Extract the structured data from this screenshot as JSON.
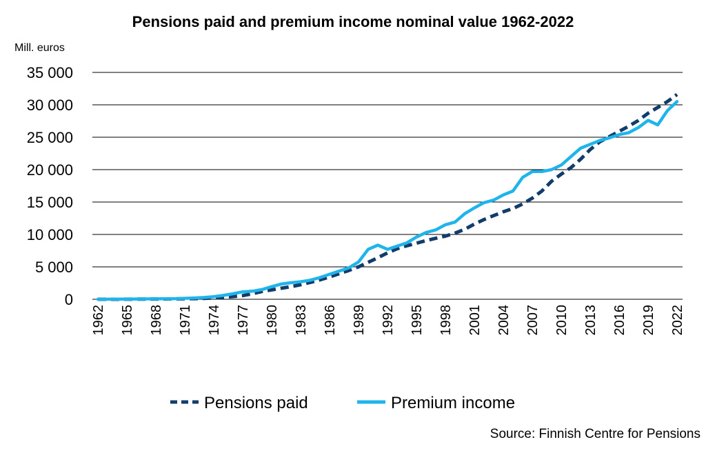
{
  "chart_data": {
    "type": "line",
    "title": "Pensions paid and premium income nominal value 1962-2022",
    "ylabel": "Mill. euros",
    "source": "Source: Finnish Centre for Pensions",
    "ylim": [
      0,
      35000
    ],
    "yticks": [
      "0",
      "5 000",
      "10 000",
      "15 000",
      "20 000",
      "25 000",
      "30 000",
      "35 000"
    ],
    "ytick_values": [
      0,
      5000,
      10000,
      15000,
      20000,
      25000,
      30000,
      35000
    ],
    "x": [
      1962,
      1963,
      1964,
      1965,
      1966,
      1967,
      1968,
      1969,
      1970,
      1971,
      1972,
      1973,
      1974,
      1975,
      1976,
      1977,
      1978,
      1979,
      1980,
      1981,
      1982,
      1983,
      1984,
      1985,
      1986,
      1987,
      1988,
      1989,
      1990,
      1991,
      1992,
      1993,
      1994,
      1995,
      1996,
      1997,
      1998,
      1999,
      2000,
      2001,
      2002,
      2003,
      2004,
      2005,
      2006,
      2007,
      2008,
      2009,
      2010,
      2011,
      2012,
      2013,
      2014,
      2015,
      2016,
      2017,
      2018,
      2019,
      2020,
      2021,
      2022
    ],
    "xtick_labels": [
      "1962",
      "1965",
      "1968",
      "1971",
      "1974",
      "1977",
      "1980",
      "1983",
      "1986",
      "1989",
      "1992",
      "1995",
      "1998",
      "2001",
      "2004",
      "2007",
      "2010",
      "2013",
      "2016",
      "2019",
      "2022"
    ],
    "grid": true,
    "legend_position": "bottom",
    "series": [
      {
        "name": "Pensions paid",
        "color": "#123d6b",
        "style": "dashed",
        "values": [
          0,
          0,
          0,
          10,
          20,
          30,
          40,
          50,
          60,
          80,
          100,
          140,
          200,
          300,
          420,
          560,
          850,
          1200,
          1450,
          1700,
          1950,
          2250,
          2600,
          3000,
          3450,
          3950,
          4450,
          5000,
          5700,
          6400,
          7150,
          7800,
          8250,
          8650,
          9050,
          9400,
          9750,
          10200,
          10800,
          11600,
          12300,
          12900,
          13500,
          14000,
          14700,
          15600,
          16700,
          18200,
          19300,
          20300,
          21600,
          23100,
          24300,
          25100,
          25900,
          26700,
          27600,
          28700,
          29600,
          30500,
          31600
        ]
      },
      {
        "name": "Premium income",
        "color": "#1fb5ec",
        "style": "solid",
        "values": [
          0,
          10,
          20,
          30,
          40,
          50,
          60,
          80,
          100,
          150,
          200,
          280,
          400,
          600,
          850,
          1150,
          1250,
          1500,
          1950,
          2350,
          2550,
          2700,
          2950,
          3350,
          3850,
          4350,
          4850,
          5750,
          7700,
          8350,
          7700,
          8200,
          8700,
          9600,
          10300,
          10700,
          11500,
          11900,
          13200,
          14100,
          14900,
          15300,
          16100,
          16700,
          18800,
          19700,
          19700,
          20000,
          20700,
          22000,
          23300,
          23900,
          24500,
          24900,
          25400,
          25700,
          26500,
          27600,
          26900,
          29100,
          30500
        ]
      }
    ]
  }
}
